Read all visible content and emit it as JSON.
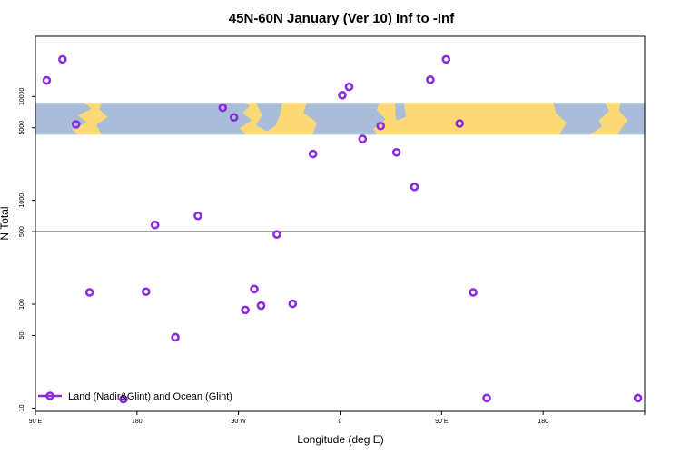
{
  "chart_data": {
    "type": "scatter",
    "title": "45N-60N January (Ver 10)   Inf to -Inf",
    "xlabel": "Longitude (deg E)",
    "ylabel": "N Total",
    "y_scale": "log",
    "xlim": [
      -90,
      180
    ],
    "ylim": [
      9.3,
      38000
    ],
    "x_ticks": [
      {
        "value": -90,
        "label": "90 E"
      },
      {
        "value": -45,
        "label": "180"
      },
      {
        "value": 0,
        "label": "90 W"
      },
      {
        "value": 45,
        "label": "0"
      },
      {
        "value": 90,
        "label": "90 E"
      },
      {
        "value": 135,
        "label": "180"
      }
    ],
    "y_ticks": [
      {
        "value": 10,
        "label": "10"
      },
      {
        "value": 50,
        "label": "50"
      },
      {
        "value": 100,
        "label": "100"
      },
      {
        "value": 500,
        "label": "500"
      },
      {
        "value": 1000,
        "label": "1000"
      },
      {
        "value": 5000,
        "label": "5000"
      },
      {
        "value": 10000,
        "label": "10000"
      }
    ],
    "reference_line": 500,
    "map_band": {
      "y_min": 4300,
      "y_max": 8700
    },
    "legend": {
      "label": "Land (Nadir&Glint) and Ocean (Glint)",
      "position": "bottom-left"
    },
    "series": [
      {
        "name": "Land (Nadir&Glint) and Ocean (Glint)",
        "color": "#8a2be2",
        "x": [
          -85,
          -78,
          -72,
          -66,
          -51,
          -41,
          -37,
          -28,
          -18,
          -7,
          -2,
          3,
          7,
          10,
          17,
          24,
          33,
          46,
          49,
          55,
          63,
          70,
          78,
          85,
          92,
          98,
          104,
          110,
          177
        ],
        "y": [
          14300,
          22800,
          5400,
          130,
          12.2,
          132,
          580,
          48,
          710,
          7800,
          6300,
          88,
          140,
          97,
          470,
          101,
          2800,
          10300,
          12400,
          3900,
          5200,
          2900,
          1350,
          14500,
          22800,
          5500,
          130,
          12.5,
          12.5
        ]
      }
    ]
  }
}
